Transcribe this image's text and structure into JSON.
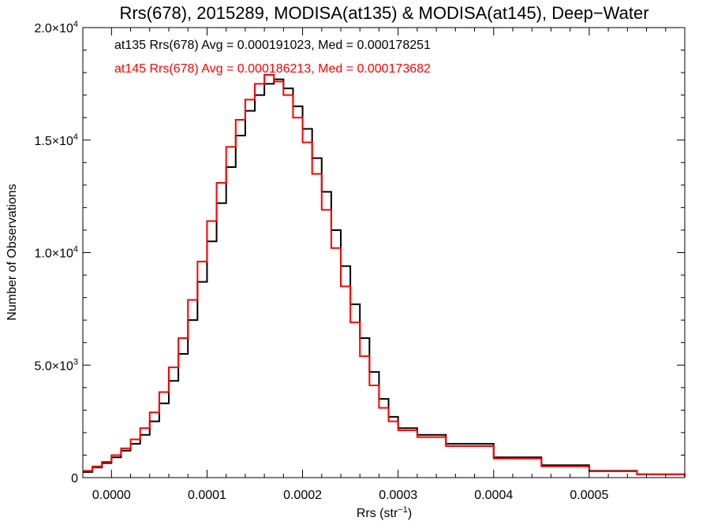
{
  "chart_data": {
    "type": "line",
    "title": "Rrs(678), 2015289, MODISA(at135) & MODISA(at145), Deep−Water",
    "xlabel": "Rrs (str",
    "xlabel_sup": "−1",
    "xlabel_end": ")",
    "ylabel": "Number of Observations",
    "xlim": [
      -3e-05,
      0.0006
    ],
    "ylim": [
      0,
      20000
    ],
    "grid": false,
    "x_ticks": [
      {
        "value": 0.0,
        "label": "0.0000"
      },
      {
        "value": 0.0001,
        "label": "0.0001"
      },
      {
        "value": 0.0002,
        "label": "0.0002"
      },
      {
        "value": 0.0003,
        "label": "0.0003"
      },
      {
        "value": 0.0004,
        "label": "0.0004"
      },
      {
        "value": 0.0005,
        "label": "0.0005"
      }
    ],
    "y_ticks": [
      {
        "value": 0,
        "label": "0",
        "sup": ""
      },
      {
        "value": 5000,
        "label": "5.0×10",
        "sup": "3"
      },
      {
        "value": 10000,
        "label": "1.0×10",
        "sup": "4"
      },
      {
        "value": 15000,
        "label": "1.5×10",
        "sup": "4"
      },
      {
        "value": 20000,
        "label": "2.0×10",
        "sup": "4"
      }
    ],
    "annotations": [
      {
        "text": "at135 Rrs(678) Avg = 0.000191023, Med = 0.000178251",
        "color": "#000000"
      },
      {
        "text": "at145 Rrs(678) Avg = 0.000186213, Med = 0.000173682",
        "color": "#ff0000"
      }
    ],
    "series": [
      {
        "color": "#000000",
        "x": [
          -3e-05,
          -2e-05,
          -1e-05,
          0.0,
          1e-05,
          2e-05,
          3e-05,
          4e-05,
          5e-05,
          6e-05,
          7e-05,
          8e-05,
          9e-05,
          0.0001,
          0.00011,
          0.00012,
          0.00013,
          0.00014,
          0.00015,
          0.00016,
          0.00017,
          0.00018,
          0.00019,
          0.0002,
          0.00021,
          0.00022,
          0.00023,
          0.00024,
          0.00025,
          0.00026,
          0.00027,
          0.00028,
          0.00029,
          0.0003,
          0.00032,
          0.00035,
          0.0004,
          0.00045,
          0.0005,
          0.00055,
          0.0006
        ],
        "y": [
          250,
          450,
          650,
          900,
          1200,
          1500,
          1900,
          2500,
          3300,
          4300,
          5500,
          7000,
          8700,
          10500,
          12200,
          13800,
          15200,
          16300,
          17000,
          17500,
          17700,
          17300,
          16500,
          15500,
          14200,
          12700,
          11000,
          9400,
          7700,
          6200,
          4700,
          3500,
          2700,
          2200,
          1900,
          1500,
          900,
          550,
          300,
          150,
          50
        ]
      },
      {
        "color": "#ff0000",
        "x": [
          -3e-05,
          -2e-05,
          -1e-05,
          0.0,
          1e-05,
          2e-05,
          3e-05,
          4e-05,
          5e-05,
          6e-05,
          7e-05,
          8e-05,
          9e-05,
          0.0001,
          0.00011,
          0.00012,
          0.00013,
          0.00014,
          0.00015,
          0.00016,
          0.00017,
          0.00018,
          0.00019,
          0.0002,
          0.00021,
          0.00022,
          0.00023,
          0.00024,
          0.00025,
          0.00026,
          0.00027,
          0.00028,
          0.00029,
          0.0003,
          0.00032,
          0.00035,
          0.0004,
          0.00045,
          0.0005,
          0.00055,
          0.0006
        ],
        "y": [
          300,
          500,
          700,
          1000,
          1300,
          1700,
          2200,
          2900,
          3800,
          4900,
          6200,
          7900,
          9600,
          11400,
          13100,
          14700,
          15900,
          16800,
          17500,
          17900,
          17600,
          17000,
          16000,
          14900,
          13500,
          11900,
          10200,
          8500,
          6900,
          5400,
          4100,
          3100,
          2500,
          2100,
          1800,
          1400,
          850,
          500,
          280,
          140,
          40
        ]
      }
    ]
  }
}
